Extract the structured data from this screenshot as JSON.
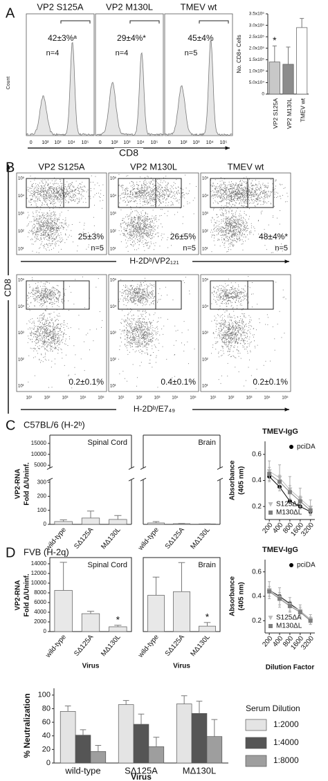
{
  "panels": {
    "A": {
      "label": "A",
      "y_label": "Count",
      "x_label": "CD8",
      "x_ticks": [
        "0",
        "10²",
        "10³",
        "10⁴",
        "10⁵"
      ],
      "histograms": [
        {
          "title": "VP2 S125A",
          "percent": "42±3%ᵃ",
          "n": "n=4"
        },
        {
          "title": "VP2 M130L",
          "percent": "29±4%*",
          "n": "n=4"
        },
        {
          "title": "TMEV wt",
          "percent": "45±4%",
          "n": "n=5"
        }
      ]
    },
    "B": {
      "label": "B",
      "y_label": "CD8",
      "titles": [
        "VP2 S125A",
        "VP2 M130L",
        "TMEV wt"
      ],
      "x_ticks": [
        "10¹",
        "10²",
        "10³",
        "10⁴",
        "10⁵"
      ],
      "y_ticks": [
        "10⁵",
        "10⁴",
        "10³",
        "10²",
        "10¹"
      ],
      "rows": [
        {
          "x_label": "H-2Dᵇ/VP2₁₂₁",
          "gates": [
            {
              "percent": "25±3%",
              "n": "n=5"
            },
            {
              "percent": "26±5%",
              "n": "n=5"
            },
            {
              "percent": "48±4%*",
              "n": "n=5"
            }
          ]
        },
        {
          "x_label": "H-2Dᵇ/E7₄₉",
          "gates": [
            {
              "percent": "0.2±0.1%"
            },
            {
              "percent": "0.4±0.1%"
            },
            {
              "percent": "0.2±0.1%"
            }
          ]
        }
      ]
    },
    "C": {
      "label": "C",
      "title": "C57BL/6 (H-2ᵇ)"
    },
    "D": {
      "label": "D",
      "title": "FVB (H-2q)"
    }
  },
  "chart_data": [
    {
      "type": "bar",
      "y_label": "No. CD8+ Cells",
      "categories": [
        "VP2 S125A",
        "VP2 M130L",
        "TMEV wt"
      ],
      "values": [
        140000,
        130000,
        290000
      ],
      "errors": [
        70000,
        75000,
        40000
      ],
      "colors": [
        "#c8c8c8",
        "#8c8c8c",
        "#ffffff"
      ],
      "significance": [
        "*",
        null,
        null
      ],
      "ylim": [
        0,
        350000
      ],
      "yticks": [
        0,
        {
          "value": 50000,
          "label": "5.0x10⁴"
        },
        {
          "value": 100000,
          "label": "1.0x10⁵"
        },
        {
          "value": 150000,
          "label": "1.5x10⁵"
        },
        {
          "value": 200000,
          "label": "2.0x10⁵"
        },
        {
          "value": 250000,
          "label": "2.5x10⁵"
        },
        {
          "value": 300000,
          "label": "3.0x10⁵"
        },
        {
          "value": 350000,
          "label": "3.5x10⁵"
        }
      ],
      "xtick_rotation": 90
    },
    {
      "type": "bar",
      "subtitle": "Spinal Cord",
      "y_label": [
        "VP2-RNA",
        "Fold Δ/Uninf."
      ],
      "categories": [
        "wild-type",
        "SΔ125A",
        "MΔ130L"
      ],
      "values": [
        20,
        45,
        35
      ],
      "errors": [
        12,
        50,
        28
      ],
      "color": "#e8e8e8",
      "ylim": [
        0,
        15000
      ],
      "ybreak": [
        300,
        5000
      ],
      "yticks": [
        0,
        100,
        200,
        300,
        5000,
        10000,
        15000
      ],
      "xtick_rotation": 50
    },
    {
      "type": "bar",
      "subtitle": "Brain",
      "categories": [
        "wild-type",
        "SΔ125A",
        "MΔ130L"
      ],
      "values": [
        10,
        5,
        3
      ],
      "errors": [
        10,
        2,
        1
      ],
      "color": "#e8e8e8",
      "ylim": [
        0,
        15000
      ],
      "ybreak": [
        300,
        5000
      ],
      "xtick_rotation": 50
    },
    {
      "type": "line",
      "title": "TMEV-IgG",
      "y_label": [
        "Absorbance",
        "(405 nm)"
      ],
      "x": [
        200,
        400,
        800,
        1600,
        3200
      ],
      "xlog": true,
      "xlim": [
        150,
        4300
      ],
      "xticks": [
        200,
        400,
        800,
        1600,
        3200
      ],
      "xtick_rotation": 50,
      "ylim": [
        0.1,
        0.7
      ],
      "yticks": [
        0.2,
        0.4,
        0.6
      ],
      "series": [
        {
          "name": "pciDA",
          "color": "#000000",
          "marker": "circle",
          "values": [
            0.43,
            0.35,
            0.24,
            0.2,
            0.16
          ]
        },
        {
          "name": "S125ΔA",
          "color": "#bdbdbd",
          "marker": "triangle",
          "values": [
            0.47,
            0.42,
            0.33,
            0.26,
            0.19
          ],
          "errors": [
            0.08,
            0.1,
            0.1,
            0.08,
            0.06
          ]
        },
        {
          "name": "M130ΔL",
          "color": "#7f7f7f",
          "marker": "square",
          "values": [
            0.45,
            0.39,
            0.31,
            0.24,
            0.17
          ],
          "errors": [
            0.05,
            0.05,
            0.05,
            0.04,
            0.03
          ]
        }
      ]
    },
    {
      "type": "bar",
      "subtitle": "Spinal Cord",
      "y_label": [
        "VP2-RNA",
        "Fold Δ/Uninf."
      ],
      "x_label": "Virus",
      "categories": [
        "wild-type",
        "SΔ125A",
        "MΔ130L"
      ],
      "values": [
        8500,
        3700,
        1000
      ],
      "errors": [
        5800,
        500,
        300
      ],
      "significance": [
        null,
        null,
        "*"
      ],
      "color": "#e8e8e8",
      "ylim": [
        0,
        15000
      ],
      "yticks": [
        0,
        2000,
        4000,
        6000,
        8000,
        10000,
        12000,
        14000
      ],
      "xtick_rotation": 50
    },
    {
      "type": "bar",
      "subtitle": "Brain",
      "x_label": "Virus",
      "categories": [
        "wild-type",
        "SΔ125A",
        "MΔ130L"
      ],
      "values": [
        100,
        110,
        15
      ],
      "errors": [
        50,
        80,
        10
      ],
      "significance": [
        null,
        null,
        "*"
      ],
      "color": "#e8e8e8",
      "ylim": [
        0,
        200
      ],
      "xtick_rotation": 50
    },
    {
      "type": "line",
      "title": "TMEV-IgG",
      "y_label": [
        "Absorbance",
        "(405 nm)"
      ],
      "x_label": "Dilution Factor",
      "x": [
        200,
        400,
        800,
        1600,
        3200
      ],
      "xlog": true,
      "xlim": [
        150,
        4300
      ],
      "xticks": [
        200,
        400,
        800,
        1600,
        3200
      ],
      "xtick_rotation": 50,
      "ylim": [
        0.1,
        0.7
      ],
      "yticks": [
        0.2,
        0.4,
        0.6
      ],
      "series": [
        {
          "name": "pciDA",
          "color": "#000000",
          "marker": "circle",
          "values": [
            0.45,
            0.4,
            0.34,
            0.28,
            0.21
          ]
        },
        {
          "name": "S125ΔA",
          "color": "#bdbdbd",
          "marker": "triangle",
          "values": [
            0.45,
            0.39,
            0.33,
            0.28,
            0.21
          ],
          "errors": [
            0.07,
            0.08,
            0.06,
            0.05,
            0.04
          ]
        },
        {
          "name": "M130ΔL",
          "color": "#7f7f7f",
          "marker": "square",
          "values": [
            0.44,
            0.38,
            0.32,
            0.27,
            0.2
          ],
          "errors": [
            0.04,
            0.05,
            0.04,
            0.04,
            0.03
          ]
        }
      ]
    },
    {
      "type": "bar",
      "y_label": "% Neutralization",
      "x_label": "Virus",
      "legend_title": "Serum Dilution",
      "categories": [
        "wild-type",
        "SΔ125A",
        "MΔ130L"
      ],
      "ylim": [
        0,
        110
      ],
      "yticks": [
        0,
        20,
        40,
        60,
        80,
        100
      ],
      "series": [
        {
          "name": "1:2000",
          "color": "#e4e4e4",
          "values": [
            76,
            86,
            87
          ],
          "errors": [
            8,
            6,
            12
          ]
        },
        {
          "name": "1:4000",
          "color": "#555555",
          "values": [
            41,
            57,
            73
          ],
          "errors": [
            8,
            15,
            18
          ]
        },
        {
          "name": "1:8000",
          "color": "#9e9e9e",
          "values": [
            17,
            24,
            39
          ],
          "errors": [
            9,
            14,
            25
          ]
        }
      ]
    }
  ]
}
